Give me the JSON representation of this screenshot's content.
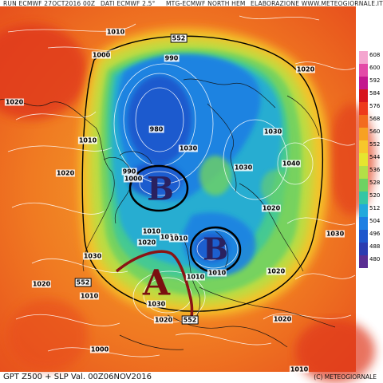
{
  "header": {
    "run": "RUN ECMWF 27OCT2016 00Z",
    "data": "DATI ECMWF 2.5°",
    "source": "MTG-ECMWF NORTH HEM",
    "credit": "ELABORAZIONE WWW.METEOGIORNALE.IT"
  },
  "footer": {
    "product": "GPT Z500 + SLP Val. 00Z06NOV2016",
    "copyright": "(C) METEOGIORNALE"
  },
  "legend": {
    "levels": [
      608,
      600,
      592,
      584,
      576,
      568,
      560,
      552,
      544,
      536,
      528,
      520,
      512,
      504,
      496,
      488,
      480
    ],
    "colors": [
      "#f4a6cf",
      "#e34aa7",
      "#c3178e",
      "#d7141d",
      "#ee3a1c",
      "#f36b1e",
      "#f7a123",
      "#f7c72b",
      "#e6e52f",
      "#b3df47",
      "#6fd262",
      "#35c6a4",
      "#22a9dc",
      "#1d7fe3",
      "#1e56cc",
      "#2b3bb0",
      "#5a2e93"
    ]
  },
  "pressure_labels": [
    {
      "text": "1010"
    },
    {
      "text": "1000"
    },
    {
      "text": "552"
    },
    {
      "text": "990"
    },
    {
      "text": "1020"
    },
    {
      "text": "1020"
    },
    {
      "text": "1010"
    },
    {
      "text": "1020"
    },
    {
      "text": "980"
    },
    {
      "text": "1030"
    },
    {
      "text": "1030"
    },
    {
      "text": "1030"
    },
    {
      "text": "1040"
    },
    {
      "text": "990"
    },
    {
      "text": "1000"
    },
    {
      "text": "1010"
    },
    {
      "text": "1020"
    },
    {
      "text": "1010"
    },
    {
      "text": "1020"
    },
    {
      "text": "1030"
    },
    {
      "text": "1020"
    },
    {
      "text": "1030"
    },
    {
      "text": "1010"
    },
    {
      "text": "1020"
    },
    {
      "text": "552"
    },
    {
      "text": "1010"
    },
    {
      "text": "1010"
    },
    {
      "text": "1010"
    },
    {
      "text": "1030"
    },
    {
      "text": "1020"
    },
    {
      "text": "552"
    },
    {
      "text": "1000"
    },
    {
      "text": "1020"
    },
    {
      "text": "1010"
    }
  ],
  "systems": [
    {
      "text": "B"
    },
    {
      "text": "B"
    },
    {
      "text": "A"
    }
  ]
}
